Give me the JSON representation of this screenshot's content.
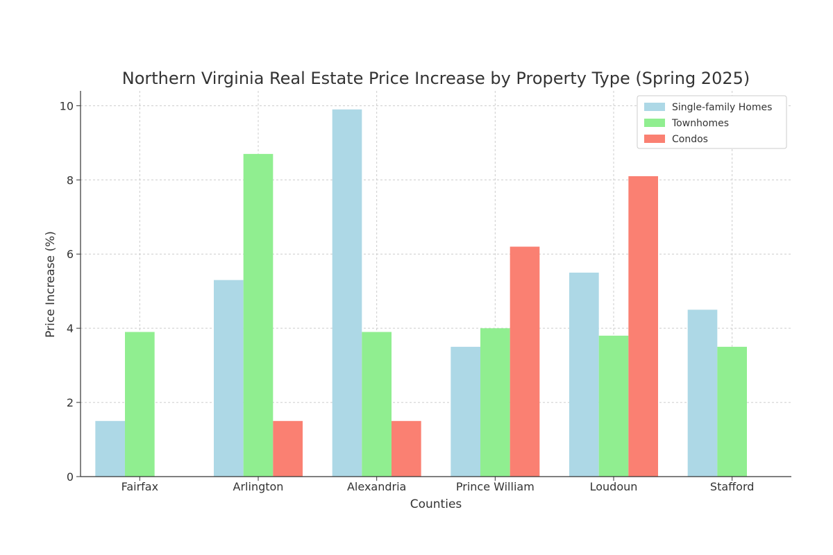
{
  "chart_data": {
    "type": "bar",
    "title": "Northern Virginia Real Estate Price Increase by Property Type (Spring 2025)",
    "xlabel": "Counties",
    "ylabel": "Price Increase (%)",
    "categories": [
      "Fairfax",
      "Arlington",
      "Alexandria",
      "Prince William",
      "Loudoun",
      "Stafford"
    ],
    "series": [
      {
        "name": "Single-family Homes",
        "color": "#add8e6",
        "values": [
          1.5,
          5.3,
          9.9,
          3.5,
          5.5,
          4.5
        ]
      },
      {
        "name": "Townhomes",
        "color": "#90ee90",
        "values": [
          3.9,
          8.7,
          3.9,
          4.0,
          3.8,
          3.5
        ]
      },
      {
        "name": "Condos",
        "color": "#fa8072",
        "values": [
          0,
          1.5,
          1.5,
          6.2,
          8.1,
          0
        ]
      }
    ],
    "ylim": [
      0,
      10.4
    ],
    "yticks": [
      "0",
      "2",
      "4",
      "6",
      "8",
      "10"
    ],
    "grid": true,
    "legend": "top-right"
  }
}
